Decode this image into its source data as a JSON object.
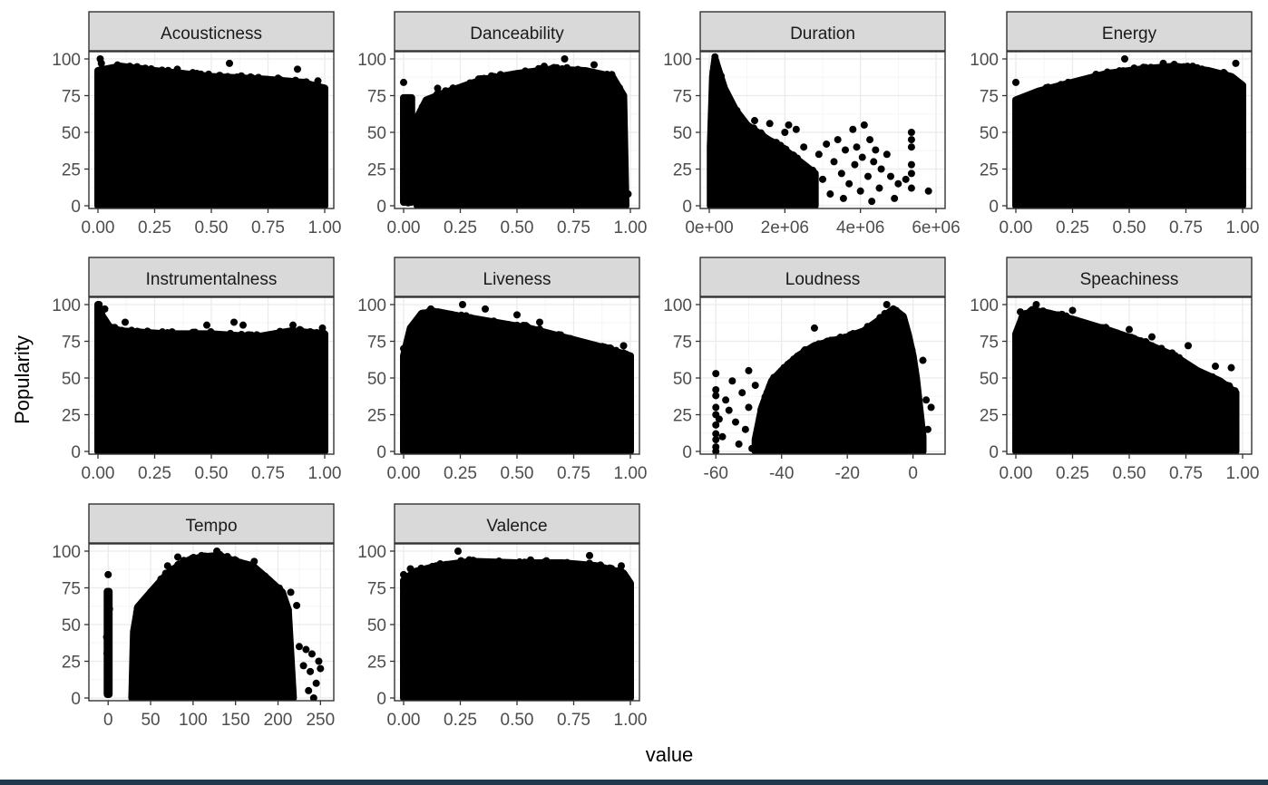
{
  "chart_data": {
    "type": "scatter",
    "ylabel": "Popularity",
    "xlabel": "value",
    "grid": true,
    "point_color": "#000000",
    "strip_fill": "#d9d9d9",
    "panel_border": "#333333",
    "grid_major": "#ebebeb",
    "grid_minor": "#f5f5f5",
    "ylim": [
      0,
      100
    ],
    "yticks": [
      0,
      25,
      50,
      75,
      100
    ],
    "panels": [
      {
        "title": "Acousticness",
        "xlim": [
          0,
          1
        ],
        "xticks": [
          0,
          0.25,
          0.5,
          0.75,
          1
        ],
        "xticklabels": [
          "0.00",
          "0.25",
          "0.50",
          "0.75",
          "1.00"
        ],
        "envelope": [
          [
            0,
            92
          ],
          [
            0.1,
            95
          ],
          [
            0.25,
            92
          ],
          [
            0.5,
            88
          ],
          [
            0.75,
            86
          ],
          [
            0.9,
            84
          ],
          [
            1.0,
            80
          ]
        ],
        "outliers": [
          [
            0.01,
            100
          ],
          [
            0.015,
            97
          ],
          [
            0.14,
            95
          ],
          [
            0.35,
            93
          ],
          [
            0.58,
            97
          ],
          [
            0.88,
            93
          ],
          [
            0.97,
            85
          ]
        ]
      },
      {
        "title": "Danceability",
        "xlim": [
          0,
          1
        ],
        "xticks": [
          0,
          0.25,
          0.5,
          0.75,
          1
        ],
        "xticklabels": [
          "0.00",
          "0.25",
          "0.50",
          "0.75",
          "1.00"
        ],
        "bands": [
          [
            0.0,
            0.035,
            0,
            76
          ]
        ],
        "envelope": [
          [
            0.06,
            60
          ],
          [
            0.1,
            72
          ],
          [
            0.2,
            78
          ],
          [
            0.35,
            86
          ],
          [
            0.5,
            90
          ],
          [
            0.65,
            93
          ],
          [
            0.8,
            92
          ],
          [
            0.92,
            88
          ],
          [
            0.97,
            75
          ],
          [
            0.98,
            0
          ]
        ],
        "outliers": [
          [
            0.0,
            84
          ],
          [
            0.02,
            2
          ],
          [
            0.15,
            80
          ],
          [
            0.4,
            88
          ],
          [
            0.62,
            95
          ],
          [
            0.71,
            100
          ],
          [
            0.84,
            96
          ],
          [
            0.97,
            55
          ],
          [
            0.99,
            8
          ]
        ]
      },
      {
        "title": "Duration",
        "xlim": [
          0,
          6000000
        ],
        "xticks": [
          0,
          2000000,
          4000000,
          6000000
        ],
        "xticklabels": [
          "0e+00",
          "2e+06",
          "4e+06",
          "6e+06"
        ],
        "envelope": [
          [
            30000,
            40
          ],
          [
            90000,
            88
          ],
          [
            150000,
            100
          ],
          [
            250000,
            92
          ],
          [
            400000,
            80
          ],
          [
            700000,
            65
          ],
          [
            1000000,
            55
          ],
          [
            1500000,
            46
          ],
          [
            2000000,
            38
          ],
          [
            2400000,
            30
          ],
          [
            2800000,
            22
          ]
        ],
        "outliers": [
          [
            800000,
            60
          ],
          [
            1200000,
            58
          ],
          [
            1600000,
            56
          ],
          [
            2000000,
            50
          ],
          [
            2100000,
            55
          ],
          [
            2300000,
            52
          ],
          [
            2500000,
            40
          ],
          [
            2600000,
            25
          ],
          [
            2700000,
            12
          ],
          [
            2900000,
            35
          ],
          [
            3000000,
            18
          ],
          [
            3100000,
            42
          ],
          [
            3200000,
            8
          ],
          [
            3300000,
            30
          ],
          [
            3400000,
            45
          ],
          [
            3500000,
            22
          ],
          [
            3550000,
            5
          ],
          [
            3600000,
            38
          ],
          [
            3700000,
            15
          ],
          [
            3800000,
            52
          ],
          [
            3850000,
            28
          ],
          [
            3900000,
            40
          ],
          [
            4000000,
            10
          ],
          [
            4050000,
            33
          ],
          [
            4100000,
            55
          ],
          [
            4200000,
            20
          ],
          [
            4250000,
            45
          ],
          [
            4300000,
            3
          ],
          [
            4350000,
            30
          ],
          [
            4400000,
            38
          ],
          [
            4500000,
            12
          ],
          [
            4550000,
            25
          ],
          [
            4700000,
            35
          ],
          [
            4800000,
            20
          ],
          [
            4900000,
            5
          ],
          [
            5000000,
            15
          ],
          [
            5200000,
            18
          ],
          [
            5350000,
            50
          ],
          [
            5350000,
            45
          ],
          [
            5350000,
            40
          ],
          [
            5350000,
            28
          ],
          [
            5350000,
            22
          ],
          [
            5350000,
            12
          ],
          [
            5800000,
            10
          ]
        ]
      },
      {
        "title": "Energy",
        "xlim": [
          0,
          1
        ],
        "xticks": [
          0,
          0.25,
          0.5,
          0.75,
          1
        ],
        "xticklabels": [
          "0.00",
          "0.25",
          "0.50",
          "0.75",
          "1.00"
        ],
        "envelope": [
          [
            0,
            72
          ],
          [
            0.1,
            78
          ],
          [
            0.25,
            84
          ],
          [
            0.4,
            90
          ],
          [
            0.55,
            93
          ],
          [
            0.7,
            95
          ],
          [
            0.85,
            92
          ],
          [
            0.95,
            88
          ],
          [
            1.0,
            82
          ]
        ],
        "outliers": [
          [
            0.0,
            84
          ],
          [
            0.48,
            100
          ],
          [
            0.65,
            97
          ],
          [
            0.78,
            95
          ],
          [
            0.97,
            97
          ]
        ]
      },
      {
        "title": "Instrumentalness",
        "xlim": [
          0,
          1
        ],
        "xticks": [
          0,
          0.25,
          0.5,
          0.75,
          1
        ],
        "xticklabels": [
          "0.00",
          "0.25",
          "0.50",
          "0.75",
          "1.00"
        ],
        "envelope": [
          [
            0,
            100
          ],
          [
            0.02,
            92
          ],
          [
            0.05,
            85
          ],
          [
            0.1,
            82
          ],
          [
            0.3,
            80
          ],
          [
            0.5,
            80
          ],
          [
            0.7,
            78
          ],
          [
            0.85,
            82
          ],
          [
            1.0,
            80
          ]
        ],
        "outliers": [
          [
            0.005,
            100
          ],
          [
            0.03,
            97
          ],
          [
            0.12,
            88
          ],
          [
            0.48,
            86
          ],
          [
            0.6,
            88
          ],
          [
            0.64,
            86
          ],
          [
            0.86,
            86
          ],
          [
            0.99,
            84
          ]
        ]
      },
      {
        "title": "Liveness",
        "xlim": [
          0,
          1
        ],
        "xticks": [
          0,
          0.25,
          0.5,
          0.75,
          1
        ],
        "xticklabels": [
          "0.00",
          "0.25",
          "0.50",
          "0.75",
          "1.00"
        ],
        "envelope": [
          [
            0.0,
            65
          ],
          [
            0.03,
            84
          ],
          [
            0.08,
            94
          ],
          [
            0.15,
            95
          ],
          [
            0.25,
            92
          ],
          [
            0.4,
            88
          ],
          [
            0.55,
            84
          ],
          [
            0.7,
            78
          ],
          [
            0.85,
            72
          ],
          [
            1.0,
            65
          ]
        ],
        "outliers": [
          [
            0.0,
            70
          ],
          [
            0.12,
            97
          ],
          [
            0.26,
            100
          ],
          [
            0.36,
            97
          ],
          [
            0.5,
            93
          ],
          [
            0.6,
            88
          ],
          [
            0.97,
            72
          ]
        ]
      },
      {
        "title": "Loudness",
        "xlim": [
          -62,
          7
        ],
        "xticks": [
          -60,
          -40,
          -20,
          0
        ],
        "xticklabels": [
          "-60",
          "-40",
          "-20",
          "0"
        ],
        "envelope": [
          [
            -48,
            8
          ],
          [
            -46,
            30
          ],
          [
            -43,
            48
          ],
          [
            -40,
            55
          ],
          [
            -35,
            65
          ],
          [
            -30,
            72
          ],
          [
            -25,
            75
          ],
          [
            -20,
            78
          ],
          [
            -15,
            82
          ],
          [
            -10,
            90
          ],
          [
            -6,
            97
          ],
          [
            -3,
            92
          ],
          [
            -1.5,
            80
          ],
          [
            0,
            65
          ],
          [
            1,
            50
          ],
          [
            2,
            30
          ],
          [
            3,
            10
          ]
        ],
        "outliers": [
          [
            -60,
            53
          ],
          [
            -60,
            42
          ],
          [
            -60,
            38
          ],
          [
            -60,
            30
          ],
          [
            -60,
            25
          ],
          [
            -60,
            18
          ],
          [
            -60,
            12
          ],
          [
            -60,
            8
          ],
          [
            -60,
            3
          ],
          [
            -60,
            0
          ],
          [
            -59,
            22
          ],
          [
            -58,
            10
          ],
          [
            -57,
            35
          ],
          [
            -56,
            28
          ],
          [
            -55,
            48
          ],
          [
            -54,
            20
          ],
          [
            -53,
            5
          ],
          [
            -52,
            40
          ],
          [
            -51,
            15
          ],
          [
            -50,
            55
          ],
          [
            -50,
            30
          ],
          [
            -49,
            2
          ],
          [
            -48,
            45
          ],
          [
            -47,
            8
          ],
          [
            -30,
            84
          ],
          [
            -8,
            100
          ],
          [
            3,
            62
          ],
          [
            4,
            35
          ],
          [
            4.5,
            15
          ],
          [
            5.5,
            30
          ]
        ]
      },
      {
        "title": "Speachiness",
        "xlim": [
          0,
          1
        ],
        "xticks": [
          0,
          0.25,
          0.5,
          0.75,
          1
        ],
        "xticklabels": [
          "0.00",
          "0.25",
          "0.50",
          "0.75",
          "1.00"
        ],
        "envelope": [
          [
            0,
            80
          ],
          [
            0.03,
            92
          ],
          [
            0.08,
            96
          ],
          [
            0.15,
            94
          ],
          [
            0.25,
            90
          ],
          [
            0.4,
            83
          ],
          [
            0.55,
            75
          ],
          [
            0.7,
            65
          ],
          [
            0.8,
            55
          ],
          [
            0.9,
            48
          ],
          [
            0.97,
            40
          ]
        ],
        "outliers": [
          [
            0.02,
            95
          ],
          [
            0.09,
            100
          ],
          [
            0.25,
            96
          ],
          [
            0.5,
            83
          ],
          [
            0.6,
            78
          ],
          [
            0.76,
            72
          ],
          [
            0.88,
            58
          ],
          [
            0.95,
            57
          ]
        ]
      },
      {
        "title": "Tempo",
        "xlim": [
          -12,
          255
        ],
        "xticks": [
          0,
          50,
          100,
          150,
          200,
          250
        ],
        "xticklabels": [
          "0",
          "50",
          "100",
          "150",
          "200",
          "250"
        ],
        "bands": [
          [
            -1,
            1,
            0,
            75
          ]
        ],
        "envelope": [
          [
            28,
            0
          ],
          [
            30,
            45
          ],
          [
            35,
            62
          ],
          [
            50,
            72
          ],
          [
            70,
            85
          ],
          [
            90,
            93
          ],
          [
            110,
            96
          ],
          [
            130,
            97
          ],
          [
            150,
            93
          ],
          [
            170,
            90
          ],
          [
            190,
            80
          ],
          [
            205,
            72
          ],
          [
            212,
            60
          ],
          [
            215,
            30
          ],
          [
            218,
            0
          ]
        ],
        "outliers": [
          [
            0,
            84
          ],
          [
            70,
            90
          ],
          [
            82,
            96
          ],
          [
            110,
            97
          ],
          [
            128,
            100
          ],
          [
            172,
            93
          ],
          [
            215,
            72
          ],
          [
            222,
            63
          ],
          [
            225,
            35
          ],
          [
            230,
            22
          ],
          [
            233,
            33
          ],
          [
            236,
            5
          ],
          [
            238,
            18
          ],
          [
            240,
            30
          ],
          [
            242,
            0
          ],
          [
            245,
            10
          ],
          [
            248,
            25
          ],
          [
            250,
            20
          ]
        ]
      },
      {
        "title": "Valence",
        "xlim": [
          0,
          1
        ],
        "xticks": [
          0,
          0.25,
          0.5,
          0.75,
          1
        ],
        "xticklabels": [
          "0.00",
          "0.25",
          "0.50",
          "0.75",
          "1.00"
        ],
        "envelope": [
          [
            0,
            80
          ],
          [
            0.05,
            86
          ],
          [
            0.15,
            90
          ],
          [
            0.3,
            93
          ],
          [
            0.5,
            92
          ],
          [
            0.7,
            92
          ],
          [
            0.85,
            90
          ],
          [
            0.97,
            85
          ],
          [
            1.0,
            78
          ]
        ],
        "outliers": [
          [
            0.0,
            84
          ],
          [
            0.03,
            88
          ],
          [
            0.24,
            100
          ],
          [
            0.56,
            94
          ],
          [
            0.82,
            97
          ],
          [
            0.96,
            90
          ]
        ]
      }
    ]
  }
}
